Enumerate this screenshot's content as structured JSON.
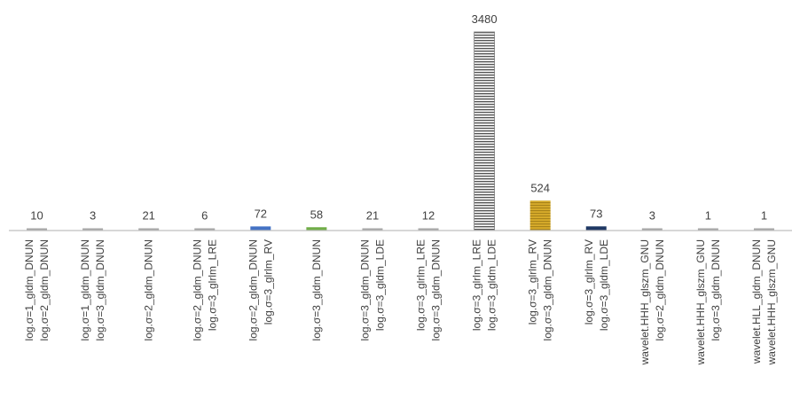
{
  "chart_data": {
    "type": "bar",
    "title": "",
    "xlabel": "",
    "ylabel": "",
    "ylim": [
      0,
      3480
    ],
    "grid": false,
    "legend": "none",
    "categories": [
      [
        "log.σ=1_gldm_DNUN",
        "log.σ=2_gldm_DNUN"
      ],
      [
        "log.σ=1_gldm_DNUN",
        "log.σ=3_gldm_DNUN"
      ],
      [
        "log.σ=2_gldm_DNUN"
      ],
      [
        "log.σ=2_gldm_DNUN",
        "log.σ=3_glrlm_LRE"
      ],
      [
        "log.σ=2_gldm_DNUN",
        "log.σ=3_glrlm_RV"
      ],
      [
        "log.σ=3_gldm_DNUN"
      ],
      [
        "log.σ=3_gldm_DNUN",
        "log.σ=3_gldm_LDE"
      ],
      [
        "log.σ=3_glrlm_LRE",
        "log.σ=3_gldm_DNUN"
      ],
      [
        "log.σ=3_glrlm_LRE",
        "log.σ=3_gldm_LDE"
      ],
      [
        "log.σ=3_glrlm_RV",
        "log.σ=3_gldm_DNUN"
      ],
      [
        "log.σ=3_glrlm_RV",
        "log.σ=3_gldm_LDE"
      ],
      [
        "wavelet.HHH_glszm_GNU",
        "log.σ=2_gldm_DNUN"
      ],
      [
        "wavelet.HHH_glszm_GNU",
        "log.σ=3_gldm_DNUN"
      ],
      [
        "wavelet.HLL_gldm_DNUN",
        "wavelet.HHH_glszm_GNU"
      ]
    ],
    "values": [
      10,
      3,
      21,
      6,
      72,
      58,
      21,
      12,
      3480,
      524,
      73,
      3,
      1,
      1
    ],
    "colors": [
      "#a5a5a5",
      "#a5a5a5",
      "#a5a5a5",
      "#a5a5a5",
      "#4472c4",
      "#70ad47",
      "#a5a5a5",
      "#a5a5a5",
      "#7f7f7f",
      "#c9a227",
      "#1f3864",
      "#a5a5a5",
      "#a5a5a5",
      "#a5a5a5"
    ],
    "axis_color": "#bfbfbf"
  }
}
